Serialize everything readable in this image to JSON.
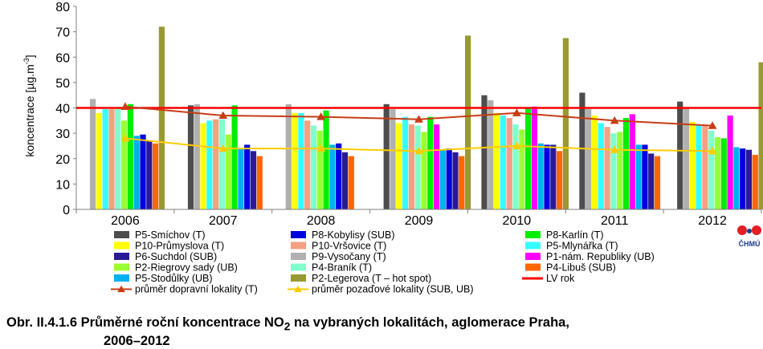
{
  "caption": {
    "line1_prefix": "Obr. II.4.1.6  Průměrné roční koncentrace NO",
    "line1_sub": "2",
    "line1_suffix": " na vybraných lokalitách, aglomerace Praha,",
    "line2": "2006–2012"
  },
  "logo": {
    "text": "ČHMÚ",
    "colors": [
      "#e31e24",
      "#e31e24"
    ],
    "icon": "chmu-logo-icon"
  },
  "chart_data": {
    "type": "bar",
    "ylabel_main": "koncentrace [µg.m",
    "ylabel_sup": "-3",
    "ylabel_end": "]",
    "ylim": [
      0,
      80
    ],
    "yticks": [
      "0",
      "10",
      "20",
      "30",
      "40",
      "50",
      "60",
      "70",
      "80"
    ],
    "grid": false,
    "legend_placement": "bottom",
    "categories": [
      "2006",
      "2007",
      "2008",
      "2009",
      "2010",
      "2011",
      "2012"
    ],
    "series": [
      {
        "name": "P5-Smíchov (T)",
        "color": "#4d4d4d",
        "values": [
          null,
          41,
          null,
          41.5,
          45,
          46,
          42.5
        ]
      },
      {
        "name": "P9-Vysočany (T)",
        "color": "#b0b0b0",
        "values": [
          43.5,
          41.5,
          41.5,
          39.5,
          43,
          39.5,
          40
        ]
      },
      {
        "name": "P10-Průmyslova (T)",
        "color": "#ffff00",
        "values": [
          38,
          34,
          38,
          34,
          38,
          37,
          34.5
        ]
      },
      {
        "name": "P5-Mlynářka (T)",
        "color": "#33ffff",
        "values": [
          39.5,
          35,
          38,
          36.5,
          37,
          34,
          33
        ]
      },
      {
        "name": "P10-Vršovice (T)",
        "color": "#f4a082",
        "values": [
          39.5,
          35.5,
          35,
          33.5,
          36,
          32.5,
          33
        ]
      },
      {
        "name": "P4-Braník (T)",
        "color": "#80ffcc",
        "values": [
          40,
          35.5,
          33,
          33,
          33.5,
          30,
          31
        ]
      },
      {
        "name": "P2-Riegrovy sady (UB)",
        "color": "#99ff33",
        "values": [
          35,
          29.5,
          31,
          30.5,
          31.5,
          30.5,
          28.5
        ]
      },
      {
        "name": "P8-Karlín (T)",
        "color": "#00ee00",
        "values": [
          41.5,
          41,
          39,
          36.5,
          40,
          36,
          28
        ]
      },
      {
        "name": "P1-nám. Republiky (UB)",
        "color": "#ff00ff",
        "values": [
          null,
          null,
          null,
          33.5,
          40.5,
          37.5,
          37
        ]
      },
      {
        "name": "P5-Stodůlky (UB)",
        "color": "#00b0f0",
        "values": [
          29,
          24,
          25.5,
          23.5,
          26,
          25.5,
          24.5
        ]
      },
      {
        "name": "P8-Kobylisy (SUB)",
        "color": "#0000e0",
        "values": [
          29.5,
          25.5,
          26,
          24,
          25.5,
          25.5,
          24
        ]
      },
      {
        "name": "P6-Suchdol (SUB)",
        "color": "#2a1a99",
        "values": [
          27,
          23,
          22.5,
          22.5,
          25.5,
          22,
          23.5
        ]
      },
      {
        "name": "P4-Libuš (SUB)",
        "color": "#ff6600",
        "values": [
          26,
          21,
          21,
          21,
          23,
          21,
          21.5
        ]
      },
      {
        "name": "P2-Legerova (T – hot spot)",
        "color": "#999933",
        "values": [
          72,
          null,
          null,
          68.5,
          67.5,
          null,
          58
        ]
      }
    ],
    "lines": [
      {
        "name": "průměr dopravní lokality (T)",
        "color": "#c83c14",
        "marker": "triangle",
        "values": [
          40.5,
          37,
          36.5,
          35.5,
          38,
          35,
          33
        ]
      },
      {
        "name": "průměr pozaďové lokality  (SUB, UB)",
        "color": "#ffcc00",
        "marker": "triangle",
        "values": [
          28,
          24,
          24,
          23,
          25,
          23.5,
          23
        ]
      },
      {
        "name": "LV rok",
        "color": "#ff0000",
        "marker": "none",
        "value": 40
      }
    ],
    "legend_columns": [
      [
        "P5-Smíchov (T)",
        "P10-Průmyslova (T)",
        "P6-Suchdol (SUB)",
        "P2-Riegrovy sady (UB)",
        "P5-Stodůlky (UB)",
        "průměr dopravní lokality (T)"
      ],
      [
        "P8-Kobylisy (SUB)",
        "P10-Vršovice (T)",
        "P9-Vysočany (T)",
        "P4-Braník (T)",
        "P2-Legerova (T – hot spot)",
        "průměr pozaďové lokality  (SUB, UB)"
      ],
      [
        "P8-Karlín (T)",
        "P5-Mlynářka (T)",
        "P1-nám. Republiky (UB)",
        "P4-Libuš (SUB)",
        "LV rok"
      ]
    ]
  }
}
